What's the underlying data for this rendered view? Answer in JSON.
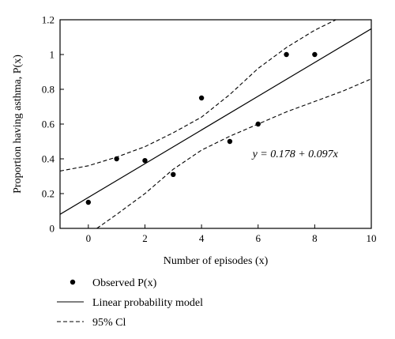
{
  "chart_data": {
    "type": "scatter",
    "xlabel": "Number of episodes (x)",
    "ylabel": "Proportion having asthma, P(x)",
    "xlim": [
      -1,
      10
    ],
    "ylim": [
      0,
      1.2
    ],
    "xticks": [
      0,
      2,
      4,
      6,
      8,
      10
    ],
    "yticks": [
      0,
      0.2,
      0.4,
      0.6,
      0.8,
      1,
      1.2
    ],
    "xtick_labels": [
      "0",
      "2",
      "4",
      "6",
      "8",
      "10"
    ],
    "ytick_labels": [
      "0",
      "0.2",
      "0.4",
      "0.6",
      "0.8",
      "1",
      "1.2"
    ],
    "grid": false,
    "legend_position": "below",
    "annotation": "y = 0.178 + 0.097x",
    "series": [
      {
        "name": "Observed P(x)",
        "style": "points",
        "x": [
          0,
          1,
          2,
          3,
          4,
          5,
          6,
          7,
          8
        ],
        "y": [
          0.15,
          0.4,
          0.39,
          0.31,
          0.75,
          0.5,
          0.6,
          1.0,
          1.0
        ]
      },
      {
        "name": "Linear probability model",
        "style": "solid",
        "intercept": 0.178,
        "slope": 0.097,
        "x": [
          -1,
          10
        ],
        "y": [
          0.081,
          1.148
        ]
      },
      {
        "name": "95% Cl",
        "style": "dashed",
        "upper": {
          "x": [
            -1,
            0,
            1,
            2,
            3,
            4,
            5,
            6,
            7,
            8,
            9
          ],
          "y": [
            0.33,
            0.36,
            0.41,
            0.47,
            0.55,
            0.64,
            0.77,
            0.92,
            1.04,
            1.14,
            1.22
          ]
        },
        "lower": {
          "x": [
            0.3,
            1,
            2,
            3,
            4,
            5,
            6,
            7,
            8,
            9,
            10
          ],
          "y": [
            0.0,
            0.08,
            0.2,
            0.34,
            0.45,
            0.53,
            0.6,
            0.67,
            0.73,
            0.79,
            0.86
          ]
        }
      }
    ]
  }
}
